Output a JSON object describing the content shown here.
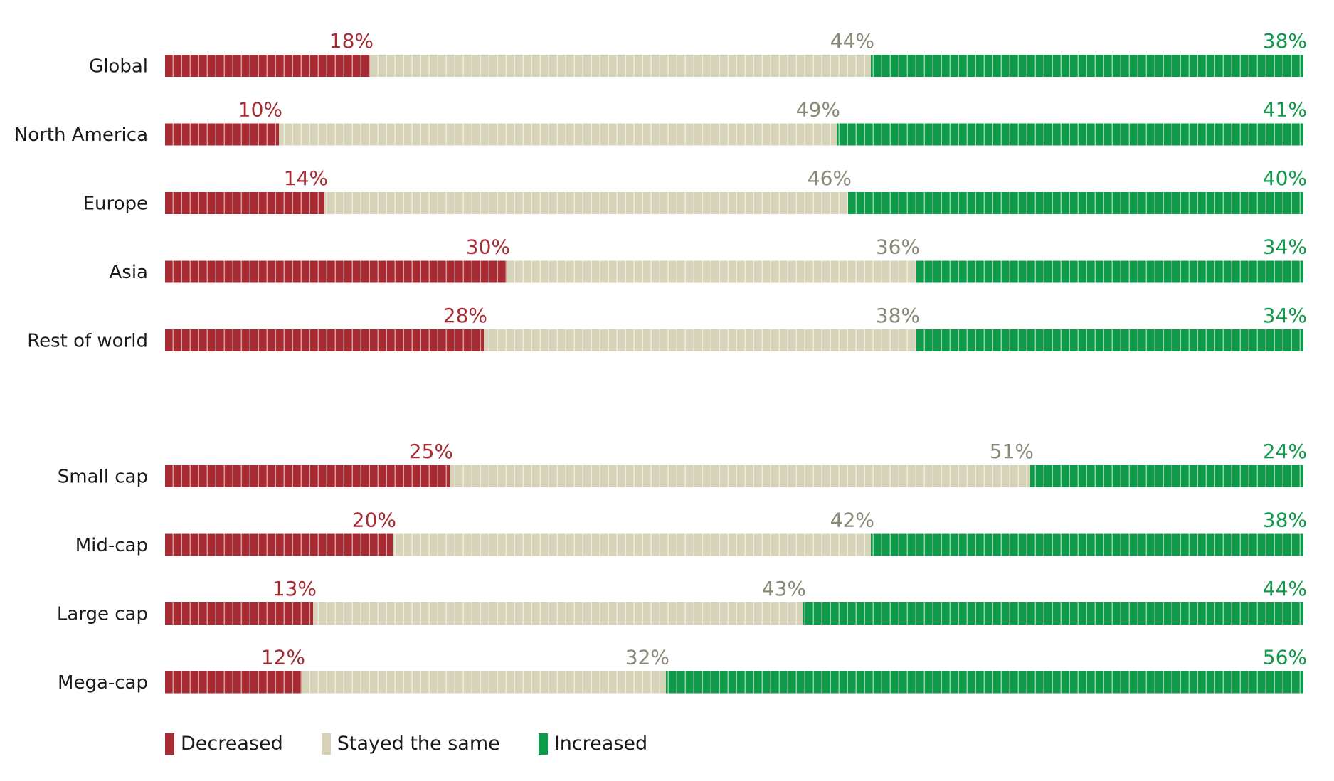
{
  "chart_data": {
    "type": "bar",
    "orientation": "horizontal",
    "stacked": true,
    "xlim": [
      0,
      100
    ],
    "unit": "%",
    "series": [
      {
        "name": "Decreased",
        "color": "#a72b33"
      },
      {
        "name": "Stayed the same",
        "color": "#d6d3b8"
      },
      {
        "name": "Increased",
        "color": "#0e9a48"
      }
    ],
    "groups": [
      {
        "rows": [
          {
            "category": "Global",
            "values": [
              18,
              44,
              38
            ]
          },
          {
            "category": "North America",
            "values": [
              10,
              49,
              41
            ]
          },
          {
            "category": "Europe",
            "values": [
              14,
              46,
              40
            ]
          },
          {
            "category": "Asia",
            "values": [
              30,
              36,
              34
            ]
          },
          {
            "category": "Rest of world",
            "values": [
              28,
              38,
              34
            ]
          }
        ]
      },
      {
        "rows": [
          {
            "category": "Small cap",
            "values": [
              25,
              51,
              24
            ]
          },
          {
            "category": "Mid-cap",
            "values": [
              20,
              42,
              38
            ]
          },
          {
            "category": "Large cap",
            "values": [
              13,
              43,
              44
            ]
          },
          {
            "category": "Mega-cap",
            "values": [
              12,
              32,
              56
            ]
          }
        ]
      }
    ],
    "label_colors": [
      "#a72b33",
      "#8a8877",
      "#0e9a48"
    ],
    "legend_position": "bottom-left"
  }
}
